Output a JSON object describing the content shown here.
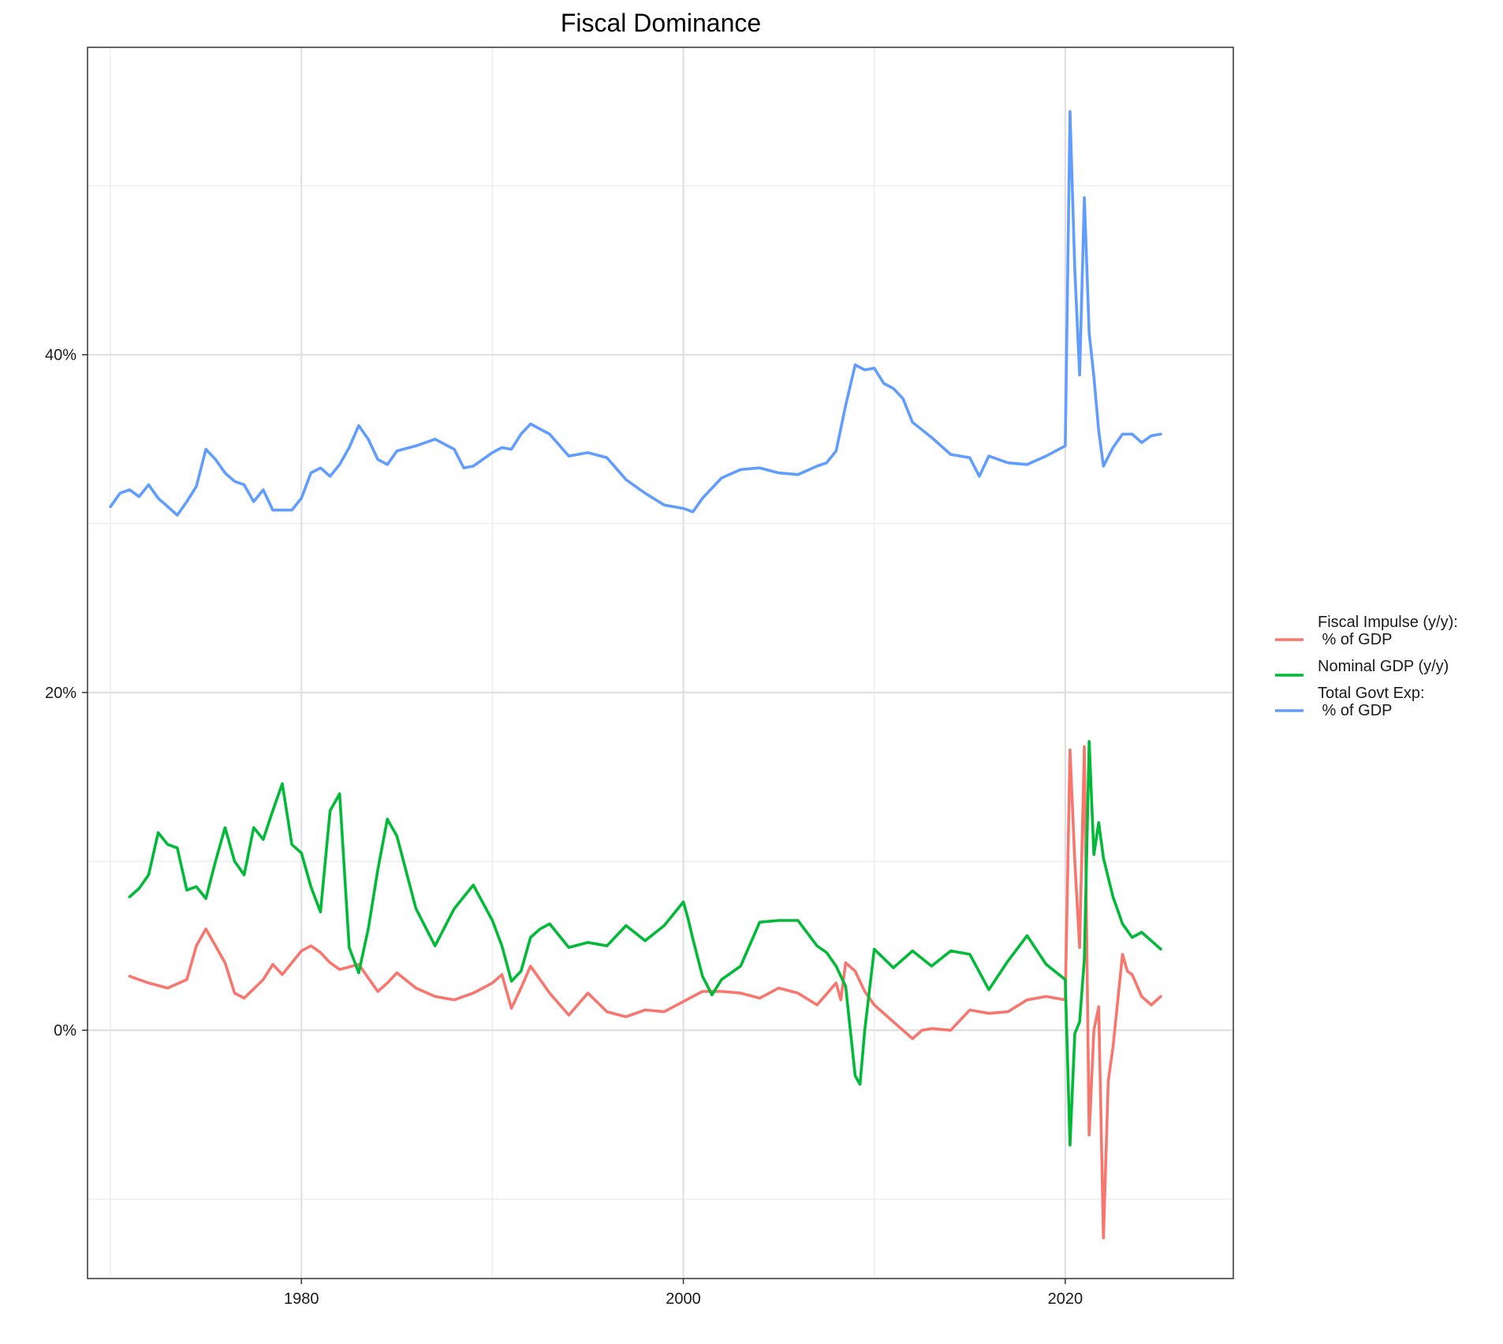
{
  "chart_data": {
    "type": "line",
    "title": "Fiscal Dominance",
    "xlabel": "",
    "ylabel": "",
    "xlim": [
      1968.8,
      2028.8
    ],
    "ylim": [
      -14.7,
      58.2
    ],
    "x_ticks": [
      1980,
      2000,
      2020
    ],
    "x_tick_labels": [
      "1980",
      "2000",
      "2020"
    ],
    "y_ticks": [
      0,
      20,
      40
    ],
    "y_tick_labels": [
      "0%",
      "20%",
      "40%"
    ],
    "grid": true,
    "legend_position": "right",
    "series": [
      {
        "name": "Fiscal Impulse (y/y):\n % of GDP",
        "color": "#F8766D",
        "x": [
          1971.0,
          1972.0,
          1973.0,
          1974.0,
          1974.5,
          1975.0,
          1975.5,
          1976.0,
          1976.5,
          1977.0,
          1978.0,
          1978.5,
          1979.0,
          1980.0,
          1980.5,
          1981.0,
          1981.5,
          1982.0,
          1983.0,
          1984.0,
          1984.5,
          1985.0,
          1986.0,
          1987.0,
          1988.0,
          1989.0,
          1990.0,
          1990.5,
          1991.0,
          1991.5,
          1992.0,
          1993.0,
          1994.0,
          1995.0,
          1996.0,
          1997.0,
          1998.0,
          1999.0,
          2000.0,
          2001.0,
          2002.0,
          2003.0,
          2004.0,
          2005.0,
          2006.0,
          2007.0,
          2008.0,
          2008.25,
          2008.5,
          2009.0,
          2009.5,
          2010.0,
          2011.0,
          2012.0,
          2012.5,
          2013.0,
          2014.0,
          2015.0,
          2016.0,
          2017.0,
          2018.0,
          2019.0,
          2020.0,
          2020.25,
          2020.5,
          2020.75,
          2021.0,
          2021.25,
          2021.5,
          2021.75,
          2022.0,
          2022.25,
          2022.5,
          2023.0,
          2023.25,
          2023.5,
          2024.0,
          2024.5,
          2025.0
        ],
        "values": [
          3.2,
          2.8,
          2.5,
          3.0,
          5.0,
          6.0,
          5.0,
          4.0,
          2.2,
          1.9,
          3.0,
          3.9,
          3.3,
          4.7,
          5.0,
          4.6,
          4.0,
          3.6,
          3.9,
          2.3,
          2.8,
          3.4,
          2.5,
          2.0,
          1.8,
          2.2,
          2.8,
          3.3,
          1.3,
          2.5,
          3.8,
          2.2,
          0.9,
          2.2,
          1.1,
          0.8,
          1.2,
          1.1,
          1.7,
          2.3,
          2.3,
          2.2,
          1.9,
          2.5,
          2.2,
          1.5,
          2.8,
          1.8,
          4.0,
          3.5,
          2.3,
          1.5,
          0.5,
          -0.5,
          0.0,
          0.1,
          0.0,
          1.2,
          1.0,
          1.1,
          1.8,
          2.0,
          1.8,
          16.6,
          10.0,
          4.9,
          16.8,
          -6.2,
          0.0,
          1.4,
          -12.3,
          -3.0,
          -1.0,
          4.5,
          3.5,
          3.3,
          2.0,
          1.5,
          2.0
        ]
      },
      {
        "name": "Nominal GDP (y/y)",
        "color": "#00BA38",
        "x": [
          1971.0,
          1971.5,
          1972.0,
          1972.5,
          1973.0,
          1973.5,
          1974.0,
          1974.5,
          1975.0,
          1975.5,
          1976.0,
          1976.5,
          1977.0,
          1977.5,
          1978.0,
          1978.5,
          1979.0,
          1979.5,
          1980.0,
          1980.5,
          1981.0,
          1981.5,
          1982.0,
          1982.5,
          1983.0,
          1983.5,
          1984.0,
          1984.5,
          1985.0,
          1986.0,
          1987.0,
          1988.0,
          1989.0,
          1990.0,
          1990.5,
          1991.0,
          1991.5,
          1992.0,
          1992.5,
          1993.0,
          1994.0,
          1995.0,
          1996.0,
          1997.0,
          1998.0,
          1999.0,
          2000.0,
          2000.25,
          2000.5,
          2001.0,
          2001.5,
          2002.0,
          2003.0,
          2004.0,
          2005.0,
          2006.0,
          2007.0,
          2007.5,
          2008.0,
          2008.5,
          2009.0,
          2009.25,
          2009.5,
          2010.0,
          2011.0,
          2012.0,
          2013.0,
          2014.0,
          2015.0,
          2016.0,
          2017.0,
          2018.0,
          2019.0,
          2020.0,
          2020.25,
          2020.5,
          2020.75,
          2021.0,
          2021.25,
          2021.5,
          2021.75,
          2022.0,
          2022.5,
          2023.0,
          2023.5,
          2024.0,
          2024.5,
          2025.0
        ],
        "values": [
          7.9,
          8.4,
          9.2,
          11.7,
          11.0,
          10.8,
          8.3,
          8.5,
          7.8,
          10.0,
          12.0,
          10.0,
          9.2,
          12.0,
          11.3,
          13.0,
          14.6,
          11.0,
          10.5,
          8.5,
          7.0,
          13.0,
          14.0,
          4.9,
          3.4,
          6.0,
          9.5,
          12.5,
          11.5,
          7.2,
          5.0,
          7.2,
          8.6,
          6.5,
          5.0,
          2.9,
          3.5,
          5.5,
          6.0,
          6.3,
          4.9,
          5.2,
          5.0,
          6.2,
          5.3,
          6.2,
          7.6,
          6.6,
          5.4,
          3.2,
          2.1,
          3.0,
          3.8,
          6.4,
          6.5,
          6.5,
          5.0,
          4.6,
          3.8,
          2.6,
          -2.7,
          -3.2,
          0.0,
          4.8,
          3.7,
          4.7,
          3.8,
          4.7,
          4.5,
          2.4,
          4.1,
          5.6,
          3.9,
          3.0,
          -6.8,
          -0.2,
          0.5,
          4.2,
          17.1,
          10.4,
          12.3,
          10.2,
          7.9,
          6.3,
          5.5,
          5.8,
          5.3,
          4.8
        ]
      },
      {
        "name": "Total Govt Exp:\n % of GDP",
        "color": "#619CFF",
        "x": [
          1970.0,
          1970.5,
          1971.0,
          1971.5,
          1972.0,
          1972.5,
          1973.0,
          1973.5,
          1974.0,
          1974.5,
          1975.0,
          1975.5,
          1976.0,
          1976.5,
          1977.0,
          1977.5,
          1978.0,
          1978.5,
          1979.0,
          1979.5,
          1980.0,
          1980.5,
          1981.0,
          1981.5,
          1982.0,
          1982.5,
          1983.0,
          1983.5,
          1984.0,
          1984.5,
          1985.0,
          1986.0,
          1987.0,
          1988.0,
          1988.5,
          1989.0,
          1990.0,
          1990.5,
          1991.0,
          1991.5,
          1992.0,
          1993.0,
          1994.0,
          1995.0,
          1996.0,
          1997.0,
          1998.0,
          1999.0,
          2000.0,
          2000.5,
          2001.0,
          2002.0,
          2003.0,
          2004.0,
          2005.0,
          2006.0,
          2007.0,
          2007.5,
          2008.0,
          2008.5,
          2009.0,
          2009.5,
          2010.0,
          2010.5,
          2011.0,
          2011.5,
          2012.0,
          2013.0,
          2014.0,
          2015.0,
          2015.5,
          2016.0,
          2017.0,
          2018.0,
          2019.0,
          2020.0,
          2020.25,
          2020.5,
          2020.75,
          2021.0,
          2021.25,
          2021.5,
          2021.75,
          2022.0,
          2022.5,
          2023.0,
          2023.5,
          2024.0,
          2024.5,
          2025.0
        ],
        "values": [
          31.0,
          31.8,
          32.0,
          31.6,
          32.3,
          31.5,
          31.0,
          30.5,
          31.3,
          32.2,
          34.4,
          33.8,
          33.0,
          32.5,
          32.3,
          31.3,
          32.0,
          30.8,
          30.8,
          30.8,
          31.5,
          33.0,
          33.3,
          32.8,
          33.5,
          34.5,
          35.8,
          35.0,
          33.8,
          33.5,
          34.3,
          34.6,
          35.0,
          34.4,
          33.3,
          33.4,
          34.2,
          34.5,
          34.4,
          35.3,
          35.9,
          35.3,
          34.0,
          34.2,
          33.9,
          32.6,
          31.8,
          31.1,
          30.9,
          30.7,
          31.5,
          32.7,
          33.2,
          33.3,
          33.0,
          32.9,
          33.4,
          33.6,
          34.3,
          37.0,
          39.4,
          39.1,
          39.2,
          38.3,
          38.0,
          37.4,
          36.0,
          35.1,
          34.1,
          33.9,
          32.8,
          34.0,
          33.6,
          33.5,
          34.0,
          34.6,
          54.4,
          45.0,
          38.8,
          49.3,
          41.3,
          38.7,
          35.5,
          33.4,
          34.5,
          35.3,
          35.3,
          34.8,
          35.2,
          35.3
        ]
      }
    ]
  }
}
